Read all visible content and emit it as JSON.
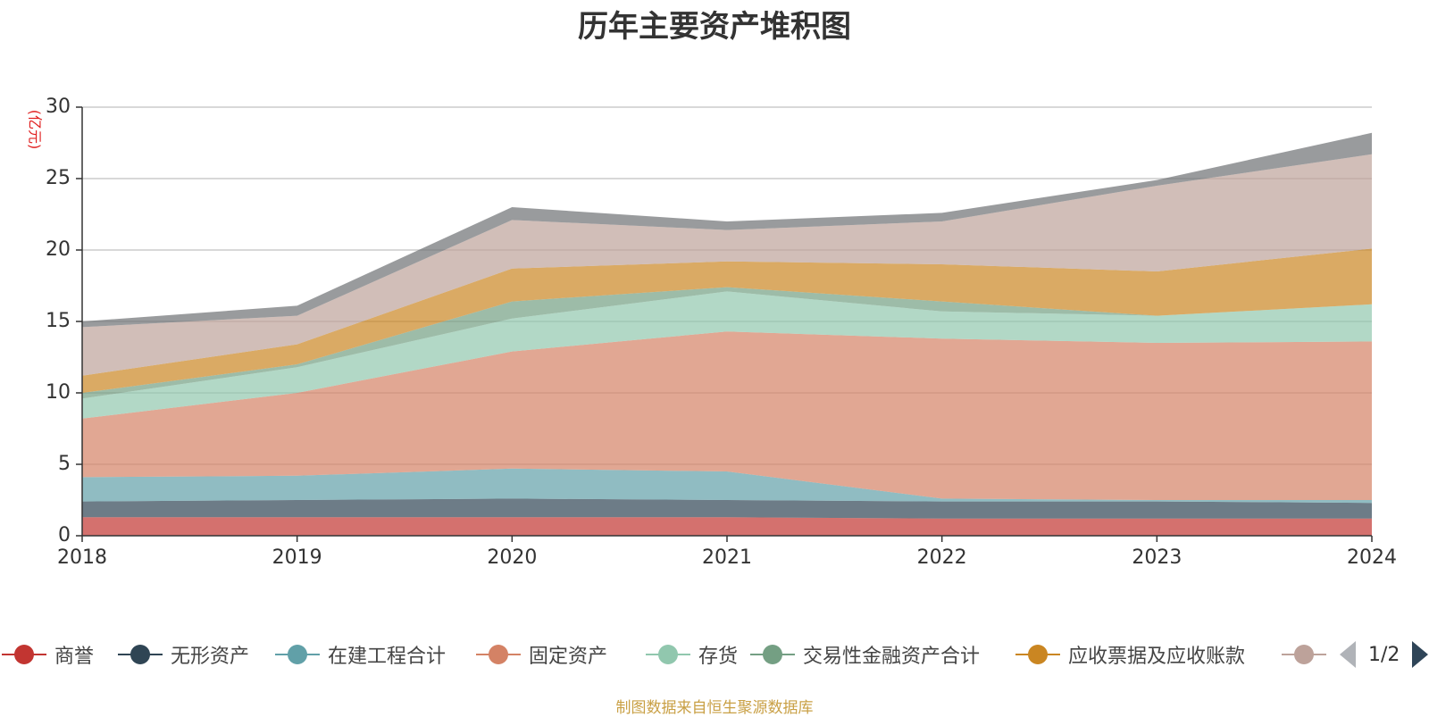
{
  "chart_data": {
    "type": "area",
    "title": "历年主要资产堆积图",
    "ylabel": "(亿元)",
    "xlabel": "",
    "stacked": true,
    "x": [
      "2018",
      "2019",
      "2020",
      "2021",
      "2022",
      "2023",
      "2024"
    ],
    "ylim": [
      0,
      30
    ],
    "yticks": [
      0,
      5,
      10,
      15,
      20,
      25,
      30
    ],
    "grid": true,
    "legend_position": "bottom",
    "series": [
      {
        "name": "商誉",
        "color": "#c23531",
        "values": [
          1.3,
          1.3,
          1.3,
          1.3,
          1.2,
          1.2,
          1.2
        ]
      },
      {
        "name": "无形资产",
        "color": "#2f4554",
        "values": [
          1.1,
          1.2,
          1.3,
          1.2,
          1.2,
          1.2,
          1.1
        ]
      },
      {
        "name": "在建工程合计",
        "color": "#61a0a8",
        "values": [
          1.7,
          1.7,
          2.1,
          2.0,
          0.2,
          0.1,
          0.2
        ]
      },
      {
        "name": "固定资产",
        "color": "#d48265",
        "values": [
          4.1,
          5.8,
          8.2,
          9.8,
          11.2,
          11.0,
          11.1
        ]
      },
      {
        "name": "存货",
        "color": "#91c7ae",
        "values": [
          1.4,
          1.8,
          2.3,
          2.8,
          1.9,
          1.9,
          2.6
        ]
      },
      {
        "name": "交易性金融资产合计",
        "color": "#749f83",
        "values": [
          0.4,
          0.2,
          1.2,
          0.3,
          0.7,
          0,
          0
        ]
      },
      {
        "name": "应收票据及应收账款",
        "color": "#ca8622",
        "values": [
          1.2,
          1.4,
          2.3,
          1.8,
          2.6,
          3.1,
          3.9
        ]
      },
      {
        "name": "",
        "color": "#bda29a",
        "values": [
          3.4,
          2.0,
          3.4,
          2.2,
          3.0,
          6.0,
          6.6
        ]
      },
      {
        "name": "",
        "color": "#6e7074",
        "values": [
          0.4,
          0.7,
          0.9,
          0.6,
          0.6,
          0.4,
          1.5
        ]
      }
    ]
  },
  "legend": {
    "page_indicator": "1/2",
    "prev_icon": "triangle-left-icon",
    "next_icon": "triangle-right-icon"
  },
  "footer": {
    "source_text": "制图数据来自恒生聚源数据库"
  }
}
